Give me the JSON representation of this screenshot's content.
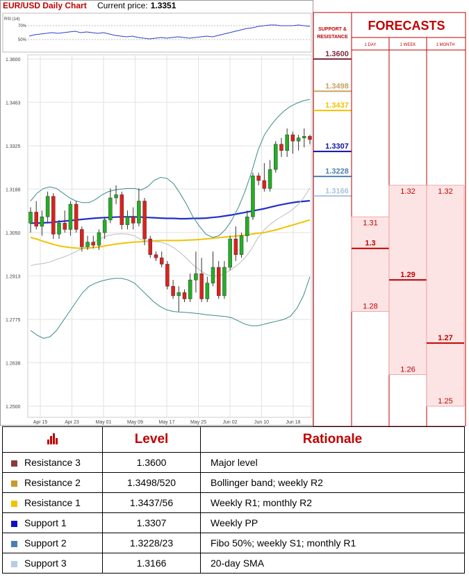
{
  "header": {
    "title": "EUR/USD Daily Chart",
    "price_label": "Current price:",
    "price_value": "1.3351"
  },
  "rsi": {
    "label": "RSI (14)",
    "level_70": "70%",
    "level_50": "50%",
    "values": [
      55,
      57,
      58,
      59,
      60,
      59,
      60,
      61,
      62,
      60,
      61,
      60,
      59,
      60,
      58,
      56,
      55,
      54,
      55,
      53,
      52,
      51,
      52,
      53,
      52,
      53,
      54,
      53,
      52,
      53,
      54,
      55,
      54,
      56,
      58,
      60,
      62,
      64,
      66,
      67,
      69,
      70,
      71,
      71,
      70,
      70,
      70,
      71,
      70,
      69
    ]
  },
  "chart_data": {
    "type": "candlestick",
    "title": "EUR/USD Daily Chart",
    "y_ticks": [
      "1.3600",
      "1.3463",
      "1.3325",
      "1.3188",
      "1.3050",
      "1.2913",
      "1.2775",
      "1.2638",
      "1.2500"
    ],
    "ylim": [
      1.25,
      1.36
    ],
    "x_labels": [
      "Apr 15",
      "Apr 23",
      "May 01",
      "May 09",
      "May 17",
      "May 25",
      "Jun 02",
      "Jun 10",
      "Jun 18"
    ],
    "grid": true,
    "series": [
      {
        "name": "100-day SMA",
        "color": "#f2c200",
        "values": [
          1.3035,
          1.3029,
          1.3022,
          1.3016,
          1.301,
          1.3006,
          1.3003,
          1.3001,
          1.3,
          1.3001,
          1.3003,
          1.3006,
          1.301,
          1.3013,
          1.3016,
          1.3018,
          1.302,
          1.3021,
          1.3023,
          1.3024,
          1.3025,
          1.3025,
          1.3025,
          1.3025,
          1.3026,
          1.3027,
          1.3028,
          1.303,
          1.3032,
          1.3034,
          1.3036,
          1.3038,
          1.304,
          1.3042,
          1.3045,
          1.3048,
          1.305,
          1.3055,
          1.306,
          1.3066,
          1.3072,
          1.3078,
          1.3084,
          1.309
        ]
      },
      {
        "name": "200-day SMA",
        "color": "#1f2fc8",
        "values": [
          1.308,
          1.308,
          1.3081,
          1.3082,
          1.3084,
          1.3086,
          1.3088,
          1.309,
          1.3092,
          1.3094,
          1.3096,
          1.3097,
          1.3098,
          1.3099,
          1.31,
          1.31,
          1.31,
          1.3099,
          1.3098,
          1.3097,
          1.3096,
          1.3095,
          1.3095,
          1.3094,
          1.3094,
          1.3095,
          1.3095,
          1.3096,
          1.3098,
          1.31,
          1.3103,
          1.3106,
          1.311,
          1.3114,
          1.3118,
          1.3122,
          1.3126,
          1.3131,
          1.3136,
          1.314,
          1.3144,
          1.3147,
          1.3149,
          1.3151
        ]
      },
      {
        "name": "Bollinger upper",
        "color": "#3a8a8a",
        "values": [
          1.315,
          1.3175,
          1.319,
          1.3195,
          1.319,
          1.3175,
          1.316,
          1.315,
          1.3145,
          1.3145,
          1.3155,
          1.317,
          1.318,
          1.3185,
          1.3188,
          1.319,
          1.319,
          1.3185,
          1.3195,
          1.3215,
          1.3225,
          1.3222,
          1.3205,
          1.3175,
          1.314,
          1.31,
          1.307,
          1.3045,
          1.3035,
          1.304,
          1.306,
          1.309,
          1.313,
          1.318,
          1.324,
          1.331,
          1.336,
          1.339,
          1.3415,
          1.3435,
          1.345,
          1.346,
          1.3468,
          1.3472
        ]
      },
      {
        "name": "Bollinger lower",
        "color": "#3a8a8a",
        "values": [
          1.274,
          1.2725,
          1.2715,
          1.272,
          1.274,
          1.277,
          1.28,
          1.283,
          1.286,
          1.288,
          1.289,
          1.2897,
          1.2902,
          1.2905,
          1.2905,
          1.29,
          1.289,
          1.287,
          1.285,
          1.283,
          1.2815,
          1.2805,
          1.28,
          1.2798,
          1.2797,
          1.2795,
          1.2793,
          1.279,
          1.2788,
          1.2786,
          1.2784,
          1.278,
          1.277,
          1.276,
          1.2755,
          1.2755,
          1.276,
          1.2765,
          1.277,
          1.2775,
          1.2785,
          1.281,
          1.285,
          1.291
        ]
      },
      {
        "name": "Bollinger middle",
        "color": "#bbbbbb",
        "values": [
          1.2945,
          1.295,
          1.2952,
          1.2957,
          1.2965,
          1.2972,
          1.298,
          1.299,
          1.3,
          1.3012,
          1.3022,
          1.3033,
          1.3041,
          1.3045,
          1.3046,
          1.3045,
          1.304,
          1.3028,
          1.3022,
          1.3022,
          1.302,
          1.3014,
          1.3003,
          1.2987,
          1.2969,
          1.2948,
          1.2932,
          1.2918,
          1.2912,
          1.2913,
          1.2922,
          1.2935,
          1.295,
          1.297,
          1.2998,
          1.3033,
          1.306,
          1.3078,
          1.3093,
          1.3105,
          1.3118,
          1.3135,
          1.3159,
          1.3191
        ]
      }
    ],
    "candles": [
      {
        "o": 1.308,
        "h": 1.313,
        "l": 1.305,
        "c": 1.3115
      },
      {
        "o": 1.3115,
        "h": 1.315,
        "l": 1.306,
        "c": 1.307
      },
      {
        "o": 1.307,
        "h": 1.312,
        "l": 1.304,
        "c": 1.31
      },
      {
        "o": 1.31,
        "h": 1.318,
        "l": 1.308,
        "c": 1.3165
      },
      {
        "o": 1.3165,
        "h": 1.3175,
        "l": 1.303,
        "c": 1.3045
      },
      {
        "o": 1.3045,
        "h": 1.309,
        "l": 1.303,
        "c": 1.308
      },
      {
        "o": 1.308,
        "h": 1.312,
        "l": 1.305,
        "c": 1.306
      },
      {
        "o": 1.306,
        "h": 1.315,
        "l": 1.304,
        "c": 1.314
      },
      {
        "o": 1.314,
        "h": 1.315,
        "l": 1.305,
        "c": 1.306
      },
      {
        "o": 1.306,
        "h": 1.307,
        "l": 1.299,
        "c": 1.3005
      },
      {
        "o": 1.3005,
        "h": 1.304,
        "l": 1.2995,
        "c": 1.302
      },
      {
        "o": 1.302,
        "h": 1.304,
        "l": 1.3,
        "c": 1.301
      },
      {
        "o": 1.301,
        "h": 1.306,
        "l": 1.2995,
        "c": 1.305
      },
      {
        "o": 1.305,
        "h": 1.31,
        "l": 1.303,
        "c": 1.309
      },
      {
        "o": 1.309,
        "h": 1.319,
        "l": 1.308,
        "c": 1.316
      },
      {
        "o": 1.316,
        "h": 1.32,
        "l": 1.314,
        "c": 1.317
      },
      {
        "o": 1.317,
        "h": 1.318,
        "l": 1.306,
        "c": 1.3075
      },
      {
        "o": 1.3075,
        "h": 1.312,
        "l": 1.306,
        "c": 1.31
      },
      {
        "o": 1.31,
        "h": 1.313,
        "l": 1.306,
        "c": 1.308
      },
      {
        "o": 1.308,
        "h": 1.319,
        "l": 1.307,
        "c": 1.315
      },
      {
        "o": 1.315,
        "h": 1.316,
        "l": 1.301,
        "c": 1.303
      },
      {
        "o": 1.303,
        "h": 1.304,
        "l": 1.297,
        "c": 1.298
      },
      {
        "o": 1.298,
        "h": 1.299,
        "l": 1.296,
        "c": 1.297
      },
      {
        "o": 1.297,
        "h": 1.299,
        "l": 1.294,
        "c": 1.295
      },
      {
        "o": 1.295,
        "h": 1.296,
        "l": 1.287,
        "c": 1.288
      },
      {
        "o": 1.288,
        "h": 1.29,
        "l": 1.284,
        "c": 1.285
      },
      {
        "o": 1.285,
        "h": 1.288,
        "l": 1.28,
        "c": 1.286
      },
      {
        "o": 1.286,
        "h": 1.287,
        "l": 1.283,
        "c": 1.284
      },
      {
        "o": 1.284,
        "h": 1.292,
        "l": 1.283,
        "c": 1.29
      },
      {
        "o": 1.29,
        "h": 1.299,
        "l": 1.286,
        "c": 1.292
      },
      {
        "o": 1.292,
        "h": 1.297,
        "l": 1.283,
        "c": 1.284
      },
      {
        "o": 1.284,
        "h": 1.291,
        "l": 1.283,
        "c": 1.289
      },
      {
        "o": 1.289,
        "h": 1.299,
        "l": 1.288,
        "c": 1.294
      },
      {
        "o": 1.294,
        "h": 1.296,
        "l": 1.284,
        "c": 1.285
      },
      {
        "o": 1.285,
        "h": 1.296,
        "l": 1.284,
        "c": 1.294
      },
      {
        "o": 1.294,
        "h": 1.304,
        "l": 1.293,
        "c": 1.303
      },
      {
        "o": 1.303,
        "h": 1.307,
        "l": 1.296,
        "c": 1.298
      },
      {
        "o": 1.298,
        "h": 1.305,
        "l": 1.297,
        "c": 1.304
      },
      {
        "o": 1.304,
        "h": 1.312,
        "l": 1.302,
        "c": 1.31
      },
      {
        "o": 1.31,
        "h": 1.324,
        "l": 1.309,
        "c": 1.323
      },
      {
        "o": 1.323,
        "h": 1.324,
        "l": 1.32,
        "c": 1.3215
      },
      {
        "o": 1.3215,
        "h": 1.327,
        "l": 1.318,
        "c": 1.319
      },
      {
        "o": 1.319,
        "h": 1.328,
        "l": 1.318,
        "c": 1.325
      },
      {
        "o": 1.325,
        "h": 1.334,
        "l": 1.324,
        "c": 1.333
      },
      {
        "o": 1.333,
        "h": 1.335,
        "l": 1.329,
        "c": 1.331
      },
      {
        "o": 1.331,
        "h": 1.338,
        "l": 1.329,
        "c": 1.336
      },
      {
        "o": 1.336,
        "h": 1.337,
        "l": 1.33,
        "c": 1.334
      },
      {
        "o": 1.334,
        "h": 1.336,
        "l": 1.331,
        "c": 1.335
      },
      {
        "o": 1.335,
        "h": 1.338,
        "l": 1.332,
        "c": 1.3355
      },
      {
        "o": 1.3355,
        "h": 1.336,
        "l": 1.333,
        "c": 1.3345
      }
    ]
  },
  "support_resistance": {
    "header_line1": "SUPPORT &",
    "header_line2": "RESISTANCE",
    "levels": [
      {
        "label": "1.3600",
        "value": 1.36,
        "color": "#7b2c3a"
      },
      {
        "label": "1.3498",
        "value": 1.3498,
        "color": "#c8a060"
      },
      {
        "label": "1.3437",
        "value": 1.3437,
        "color": "#f2c200"
      },
      {
        "label": "1.3307",
        "value": 1.3307,
        "color": "#1010a0"
      },
      {
        "label": "1.3228",
        "value": 1.3228,
        "color": "#4a7fb0"
      },
      {
        "label": "1.3166",
        "value": 1.3166,
        "color": "#aac4dc"
      }
    ]
  },
  "forecasts": {
    "title": "FORECASTS",
    "columns": [
      {
        "label": "1 DAY",
        "high": "1.31",
        "mid": "1.3",
        "low": "1.28",
        "high_v": 1.31,
        "mid_v": 1.3,
        "low_v": 1.28
      },
      {
        "label": "1 WEEK",
        "high": "1.32",
        "mid": "1.29",
        "low": "1.26",
        "high_v": 1.32,
        "mid_v": 1.29,
        "low_v": 1.26
      },
      {
        "label": "1 MONTH",
        "high": "1.32",
        "mid": "1.27",
        "low": "1.25",
        "high_v": 1.32,
        "mid_v": 1.27,
        "low_v": 1.25
      }
    ]
  },
  "table": {
    "headers": [
      "Level",
      "Rationale"
    ],
    "rows": [
      {
        "name": "Resistance 3",
        "color": "#8b3a3a",
        "level": "1.3600",
        "rationale": "Major level"
      },
      {
        "name": "Resistance 2",
        "color": "#c89a2a",
        "level": "1.3498/520",
        "rationale": "Bollinger band; weekly R2"
      },
      {
        "name": "Resistance 1",
        "color": "#f2c200",
        "level": "1.3437/56",
        "rationale": "Weekly R1; monthly R2"
      },
      {
        "name": "Support 1",
        "color": "#1010c0",
        "level": "1.3307",
        "rationale": "Weekly PP"
      },
      {
        "name": "Support 2",
        "color": "#4a7fb0",
        "level": "1.3228/23",
        "rationale": "Fibo 50%; weekly S1; monthly R1"
      },
      {
        "name": "Support 3",
        "color": "#b8cce4",
        "level": "1.3166",
        "rationale": "20-day SMA"
      }
    ]
  }
}
